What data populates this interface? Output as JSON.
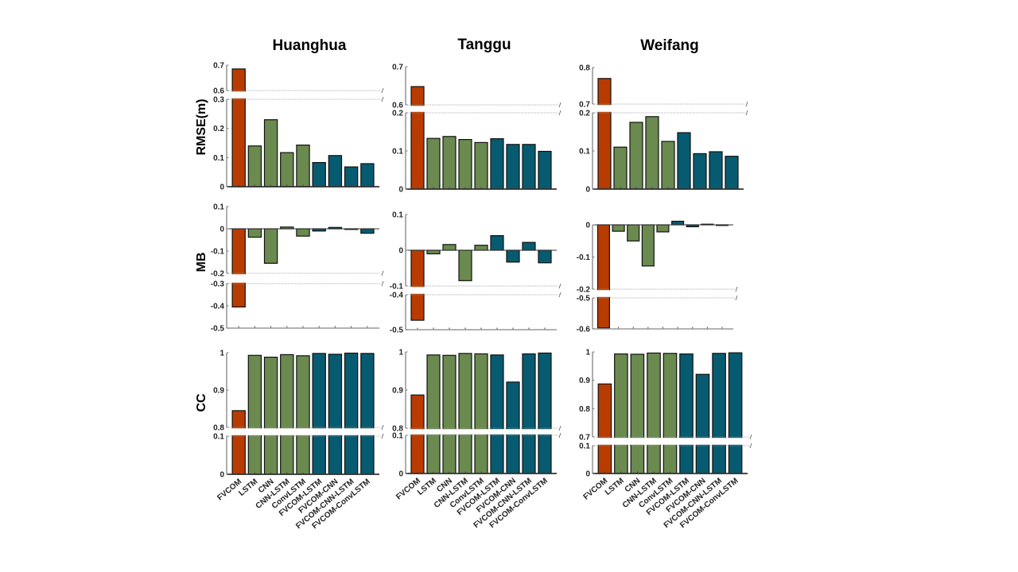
{
  "chart_data": {
    "type": "bar",
    "layout": "3 rows x 3 columns grid of broken-axis bar charts",
    "categories": [
      "FVCOM",
      "LSTM",
      "CNN",
      "CNN-LSTM",
      "ConvLSTM",
      "FVCOM-LSTM",
      "FVCOM-CNN",
      "FVCOM-CNN-LSTM",
      "FVCOM-ConvLSTM"
    ],
    "category_groups": [
      "physical",
      "ml",
      "ml",
      "ml",
      "ml",
      "hybrid",
      "hybrid",
      "hybrid",
      "hybrid"
    ],
    "group_colors": {
      "physical": "#b83c00",
      "ml": "#6a8a4f",
      "hybrid": "#075b70"
    },
    "column_titles": [
      "Huanghua",
      "Tanggu",
      "Weifang"
    ],
    "row_labels": [
      "RMSE(m)",
      "MB",
      "CC"
    ],
    "panels": [
      {
        "station": "Huanghua",
        "metric": "RMSE(m)",
        "ylim_lower": [
          0,
          0.3
        ],
        "ylim_upper": [
          0.6,
          0.7
        ],
        "yticks_lower": [
          "0",
          "0.1",
          "0.2",
          "0.3"
        ],
        "yticks_upper": [
          "0.6",
          "0.7"
        ],
        "values": [
          0.685,
          0.14,
          0.23,
          0.117,
          0.143,
          0.083,
          0.107,
          0.068,
          0.079
        ]
      },
      {
        "station": "Tanggu",
        "metric": "RMSE(m)",
        "ylim_lower": [
          0,
          0.2
        ],
        "ylim_upper": [
          0.6,
          0.7
        ],
        "yticks_lower": [
          "0",
          "0.1",
          "0.2"
        ],
        "yticks_upper": [
          "0.6",
          "0.7"
        ],
        "values": [
          0.648,
          0.133,
          0.138,
          0.13,
          0.122,
          0.132,
          0.117,
          0.117,
          0.099
        ]
      },
      {
        "station": "Weifang",
        "metric": "RMSE(m)",
        "ylim_lower": [
          0,
          0.2
        ],
        "ylim_upper": [
          0.7,
          0.8
        ],
        "yticks_lower": [
          "0",
          "0.1",
          "0.2"
        ],
        "yticks_upper": [
          "0.7",
          "0.8"
        ],
        "values": [
          0.77,
          0.11,
          0.175,
          0.19,
          0.125,
          0.148,
          0.093,
          0.098,
          0.086
        ]
      },
      {
        "station": "Huanghua",
        "metric": "MB",
        "ylim_lower": [
          -0.5,
          -0.3
        ],
        "ylim_upper": [
          -0.2,
          0.1
        ],
        "yticks_lower": [
          "-0.5",
          "-0.4",
          "-0.3"
        ],
        "yticks_upper": [
          "-0.2",
          "-0.1",
          "0",
          "0.1"
        ],
        "values": [
          -0.405,
          -0.038,
          -0.155,
          0.008,
          -0.033,
          -0.01,
          0.006,
          -0.002,
          -0.02
        ]
      },
      {
        "station": "Tanggu",
        "metric": "MB",
        "ylim_lower": [
          -0.5,
          -0.4
        ],
        "ylim_upper": [
          -0.1,
          0.1
        ],
        "yticks_lower": [
          "-0.5",
          "-0.4"
        ],
        "yticks_upper": [
          "-0.1",
          "0",
          "0.1"
        ],
        "values": [
          -0.473,
          -0.01,
          0.016,
          -0.085,
          0.014,
          0.041,
          -0.033,
          0.022,
          -0.035
        ]
      },
      {
        "station": "Weifang",
        "metric": "MB",
        "ylim_lower": [
          -0.6,
          -0.5
        ],
        "ylim_upper": [
          -0.2,
          0.0
        ],
        "yticks_lower": [
          "-0.6",
          "-0.5"
        ],
        "yticks_upper": [
          "-0.2",
          "-0.1",
          "0"
        ],
        "values": [
          -0.597,
          -0.02,
          -0.05,
          -0.128,
          -0.022,
          0.011,
          -0.006,
          0.002,
          -0.002
        ]
      },
      {
        "station": "Huanghua",
        "metric": "CC",
        "ylim_lower": [
          0,
          0.1
        ],
        "ylim_upper": [
          0.8,
          1.0
        ],
        "yticks_lower": [
          "0",
          "0.1"
        ],
        "yticks_upper": [
          "0.8",
          "0.9",
          "1"
        ],
        "values": [
          0.845,
          0.993,
          0.988,
          0.995,
          0.992,
          0.998,
          0.996,
          0.999,
          0.998
        ]
      },
      {
        "station": "Tanggu",
        "metric": "CC",
        "ylim_lower": [
          0,
          0.1
        ],
        "ylim_upper": [
          0.8,
          1.0
        ],
        "yticks_lower": [
          "0",
          "0.1"
        ],
        "yticks_upper": [
          "0.8",
          "0.9",
          "1"
        ],
        "values": [
          0.887,
          0.992,
          0.991,
          0.996,
          0.995,
          0.992,
          0.921,
          0.995,
          0.997
        ]
      },
      {
        "station": "Weifang",
        "metric": "CC",
        "ylim_lower": [
          0,
          0.1
        ],
        "ylim_upper": [
          0.7,
          1.0
        ],
        "yticks_lower": [
          "0",
          "0.1"
        ],
        "yticks_upper": [
          "0.7",
          "0.8",
          "0.9",
          "1"
        ],
        "values": [
          0.887,
          0.993,
          0.992,
          0.996,
          0.995,
          0.993,
          0.921,
          0.995,
          0.997
        ]
      }
    ],
    "xlabel": "",
    "grid": false,
    "legend": "none"
  }
}
